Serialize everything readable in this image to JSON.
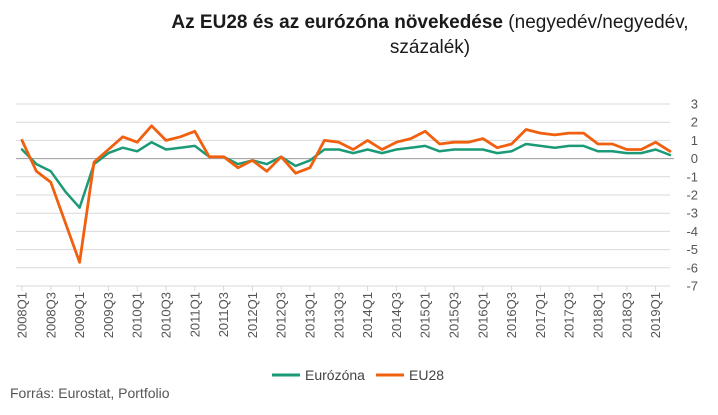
{
  "title_bold": "Az EU28 és az eurózóna növekedése",
  "title_rest": " (negyedév/negyedév, százalék)",
  "source": "Forrás: Eurostat, Portfolio",
  "colors": {
    "eurozone": "#1a9a77",
    "eu28": "#f0600f",
    "grid": "#d9d9d9",
    "axis": "#9a9a9a"
  },
  "chart_data": {
    "type": "line",
    "title": "Az EU28 és az eurózóna növekedése (negyedév/negyedév, százalék)",
    "xlabel": "",
    "ylabel": "",
    "ylim": [
      -7,
      3
    ],
    "yticks": [
      3,
      2,
      1,
      0,
      -1,
      -2,
      -3,
      -4,
      -5,
      -6,
      -7
    ],
    "grid": true,
    "legend": "bottom",
    "x_tick_labels": [
      "2008Q1",
      "2008Q3",
      "2009Q1",
      "2009Q3",
      "2010Q1",
      "2010Q3",
      "2011Q1",
      "2011Q3",
      "2012Q1",
      "2012Q3",
      "2013Q1",
      "2013Q3",
      "2014Q1",
      "2014Q3",
      "2015Q1",
      "2015Q3",
      "2016Q1",
      "2016Q3",
      "2017Q1",
      "2017Q3",
      "2018Q1",
      "2018Q3",
      "2019Q1"
    ],
    "x": [
      "2008Q1",
      "2008Q2",
      "2008Q3",
      "2008Q4",
      "2009Q1",
      "2009Q2",
      "2009Q3",
      "2009Q4",
      "2010Q1",
      "2010Q2",
      "2010Q3",
      "2010Q4",
      "2011Q1",
      "2011Q2",
      "2011Q3",
      "2011Q4",
      "2012Q1",
      "2012Q2",
      "2012Q3",
      "2012Q4",
      "2013Q1",
      "2013Q2",
      "2013Q3",
      "2013Q4",
      "2014Q1",
      "2014Q2",
      "2014Q3",
      "2014Q4",
      "2015Q1",
      "2015Q2",
      "2015Q3",
      "2015Q4",
      "2016Q1",
      "2016Q2",
      "2016Q3",
      "2016Q4",
      "2017Q1",
      "2017Q2",
      "2017Q3",
      "2017Q4",
      "2018Q1",
      "2018Q2",
      "2018Q3",
      "2018Q4",
      "2019Q1",
      "2019Q2"
    ],
    "series": [
      {
        "name": "Eurózóna",
        "values": [
          0.5,
          -0.3,
          -0.7,
          -1.8,
          -2.7,
          -0.3,
          0.3,
          0.6,
          0.4,
          0.9,
          0.5,
          0.6,
          0.7,
          0.1,
          0.1,
          -0.3,
          -0.1,
          -0.3,
          0.1,
          -0.4,
          -0.1,
          0.5,
          0.5,
          0.3,
          0.5,
          0.3,
          0.5,
          0.6,
          0.7,
          0.4,
          0.5,
          0.5,
          0.5,
          0.3,
          0.4,
          0.8,
          0.7,
          0.6,
          0.7,
          0.7,
          0.4,
          0.4,
          0.3,
          0.3,
          0.5,
          0.2
        ]
      },
      {
        "name": "EU28",
        "values": [
          1.0,
          -0.7,
          -1.3,
          -3.5,
          -5.7,
          -0.2,
          0.5,
          1.2,
          0.9,
          1.8,
          1.0,
          1.2,
          1.5,
          0.1,
          0.1,
          -0.5,
          -0.1,
          -0.7,
          0.1,
          -0.8,
          -0.5,
          1.0,
          0.9,
          0.5,
          1.0,
          0.5,
          0.9,
          1.1,
          1.5,
          0.8,
          0.9,
          0.9,
          1.1,
          0.6,
          0.8,
          1.6,
          1.4,
          1.3,
          1.4,
          1.4,
          0.8,
          0.8,
          0.5,
          0.5,
          0.9,
          0.4
        ]
      }
    ]
  }
}
